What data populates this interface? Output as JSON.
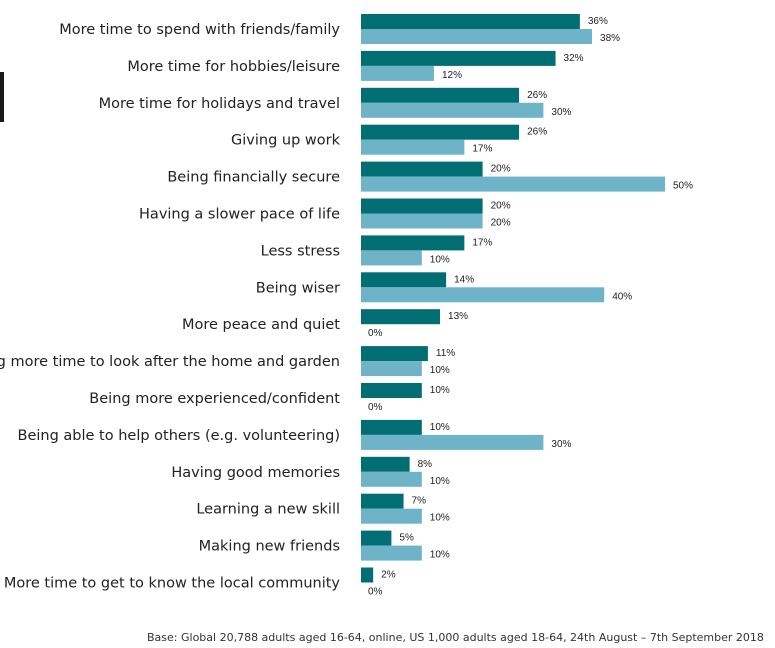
{
  "chart_data": {
    "type": "bar",
    "orientation": "horizontal",
    "categories": [
      "More time to spend with friends/family",
      "More time for hobbies/leisure",
      "More time for holidays and travel",
      "Giving up work",
      "Being financially secure",
      "Having a slower pace of life",
      "Less stress",
      "Being wiser",
      "More peace and quiet",
      "Having more time to look after the home and garden",
      "Being more experienced/confident",
      "Being able to help others (e.g. volunteering)",
      "Having good memories",
      "Learning a new skill",
      "Making new friends",
      "More time to get to know the local community"
    ],
    "series": [
      {
        "values": [
          36,
          32,
          26,
          26,
          20,
          20,
          17,
          14,
          13,
          11,
          10,
          10,
          8,
          7,
          5,
          2
        ],
        "color": "#006e73"
      },
      {
        "values": [
          38,
          12,
          30,
          17,
          50,
          20,
          10,
          40,
          0,
          10,
          0,
          30,
          10,
          10,
          10,
          0
        ],
        "color": "#6fb3c8"
      }
    ],
    "value_suffix": "%",
    "xlim": [
      0,
      50
    ],
    "grid": false,
    "legend": "none"
  },
  "footnote": "Base: Global 20,788 adults aged 16-64, online, US 1,000 adults aged 18-64, 24th August – 7th September 2018"
}
